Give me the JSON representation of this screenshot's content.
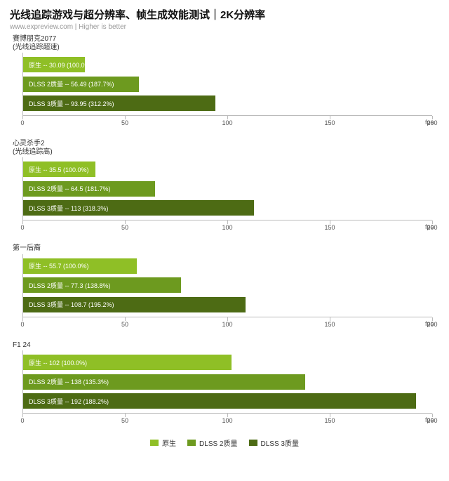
{
  "title": "光线追踪游戏与超分辨率、帧生成效能测试｜2K分辨率",
  "subtitle": "www.expreview.com | Higher is better",
  "axis": {
    "max": 200,
    "ticks": [
      0,
      50,
      100,
      150,
      200
    ],
    "unit": "fps"
  },
  "series": [
    {
      "key": "native",
      "label": "原生",
      "color": "#8fbf26"
    },
    {
      "key": "dlss2",
      "label": "DLSS 2质量",
      "color": "#6d9a1f"
    },
    {
      "key": "dlss3",
      "label": "DLSS 3质量",
      "color": "#4d6b14"
    }
  ],
  "panels": [
    {
      "title_lines": [
        "赛博朋克2077",
        "(光线追踪超速)"
      ],
      "bars": [
        {
          "series": "native",
          "value": 30.09,
          "text": "原生 -- 30.09 (100.0%)"
        },
        {
          "series": "dlss2",
          "value": 56.49,
          "text": "DLSS 2质量 -- 56.49 (187.7%)"
        },
        {
          "series": "dlss3",
          "value": 93.95,
          "text": "DLSS 3质量 -- 93.95 (312.2%)"
        }
      ]
    },
    {
      "title_lines": [
        "心灵杀手2",
        "(光线追踪高)"
      ],
      "bars": [
        {
          "series": "native",
          "value": 35.5,
          "text": "原生 -- 35.5 (100.0%)"
        },
        {
          "series": "dlss2",
          "value": 64.5,
          "text": "DLSS 2质量 -- 64.5 (181.7%)"
        },
        {
          "series": "dlss3",
          "value": 113,
          "text": "DLSS 3质量 -- 113 (318.3%)"
        }
      ]
    },
    {
      "title_lines": [
        "第一后裔"
      ],
      "bars": [
        {
          "series": "native",
          "value": 55.7,
          "text": "原生 -- 55.7 (100.0%)"
        },
        {
          "series": "dlss2",
          "value": 77.3,
          "text": "DLSS 2质量 -- 77.3 (138.8%)"
        },
        {
          "series": "dlss3",
          "value": 108.7,
          "text": "DLSS 3质量 -- 108.7 (195.2%)"
        }
      ]
    },
    {
      "title_lines": [
        "F1 24"
      ],
      "bars": [
        {
          "series": "native",
          "value": 102,
          "text": "原生 -- 102 (100.0%)"
        },
        {
          "series": "dlss2",
          "value": 138,
          "text": "DLSS 2质量 -- 138 (135.3%)"
        },
        {
          "series": "dlss3",
          "value": 192,
          "text": "DLSS 3质量 -- 192 (188.2%)"
        }
      ]
    }
  ]
}
